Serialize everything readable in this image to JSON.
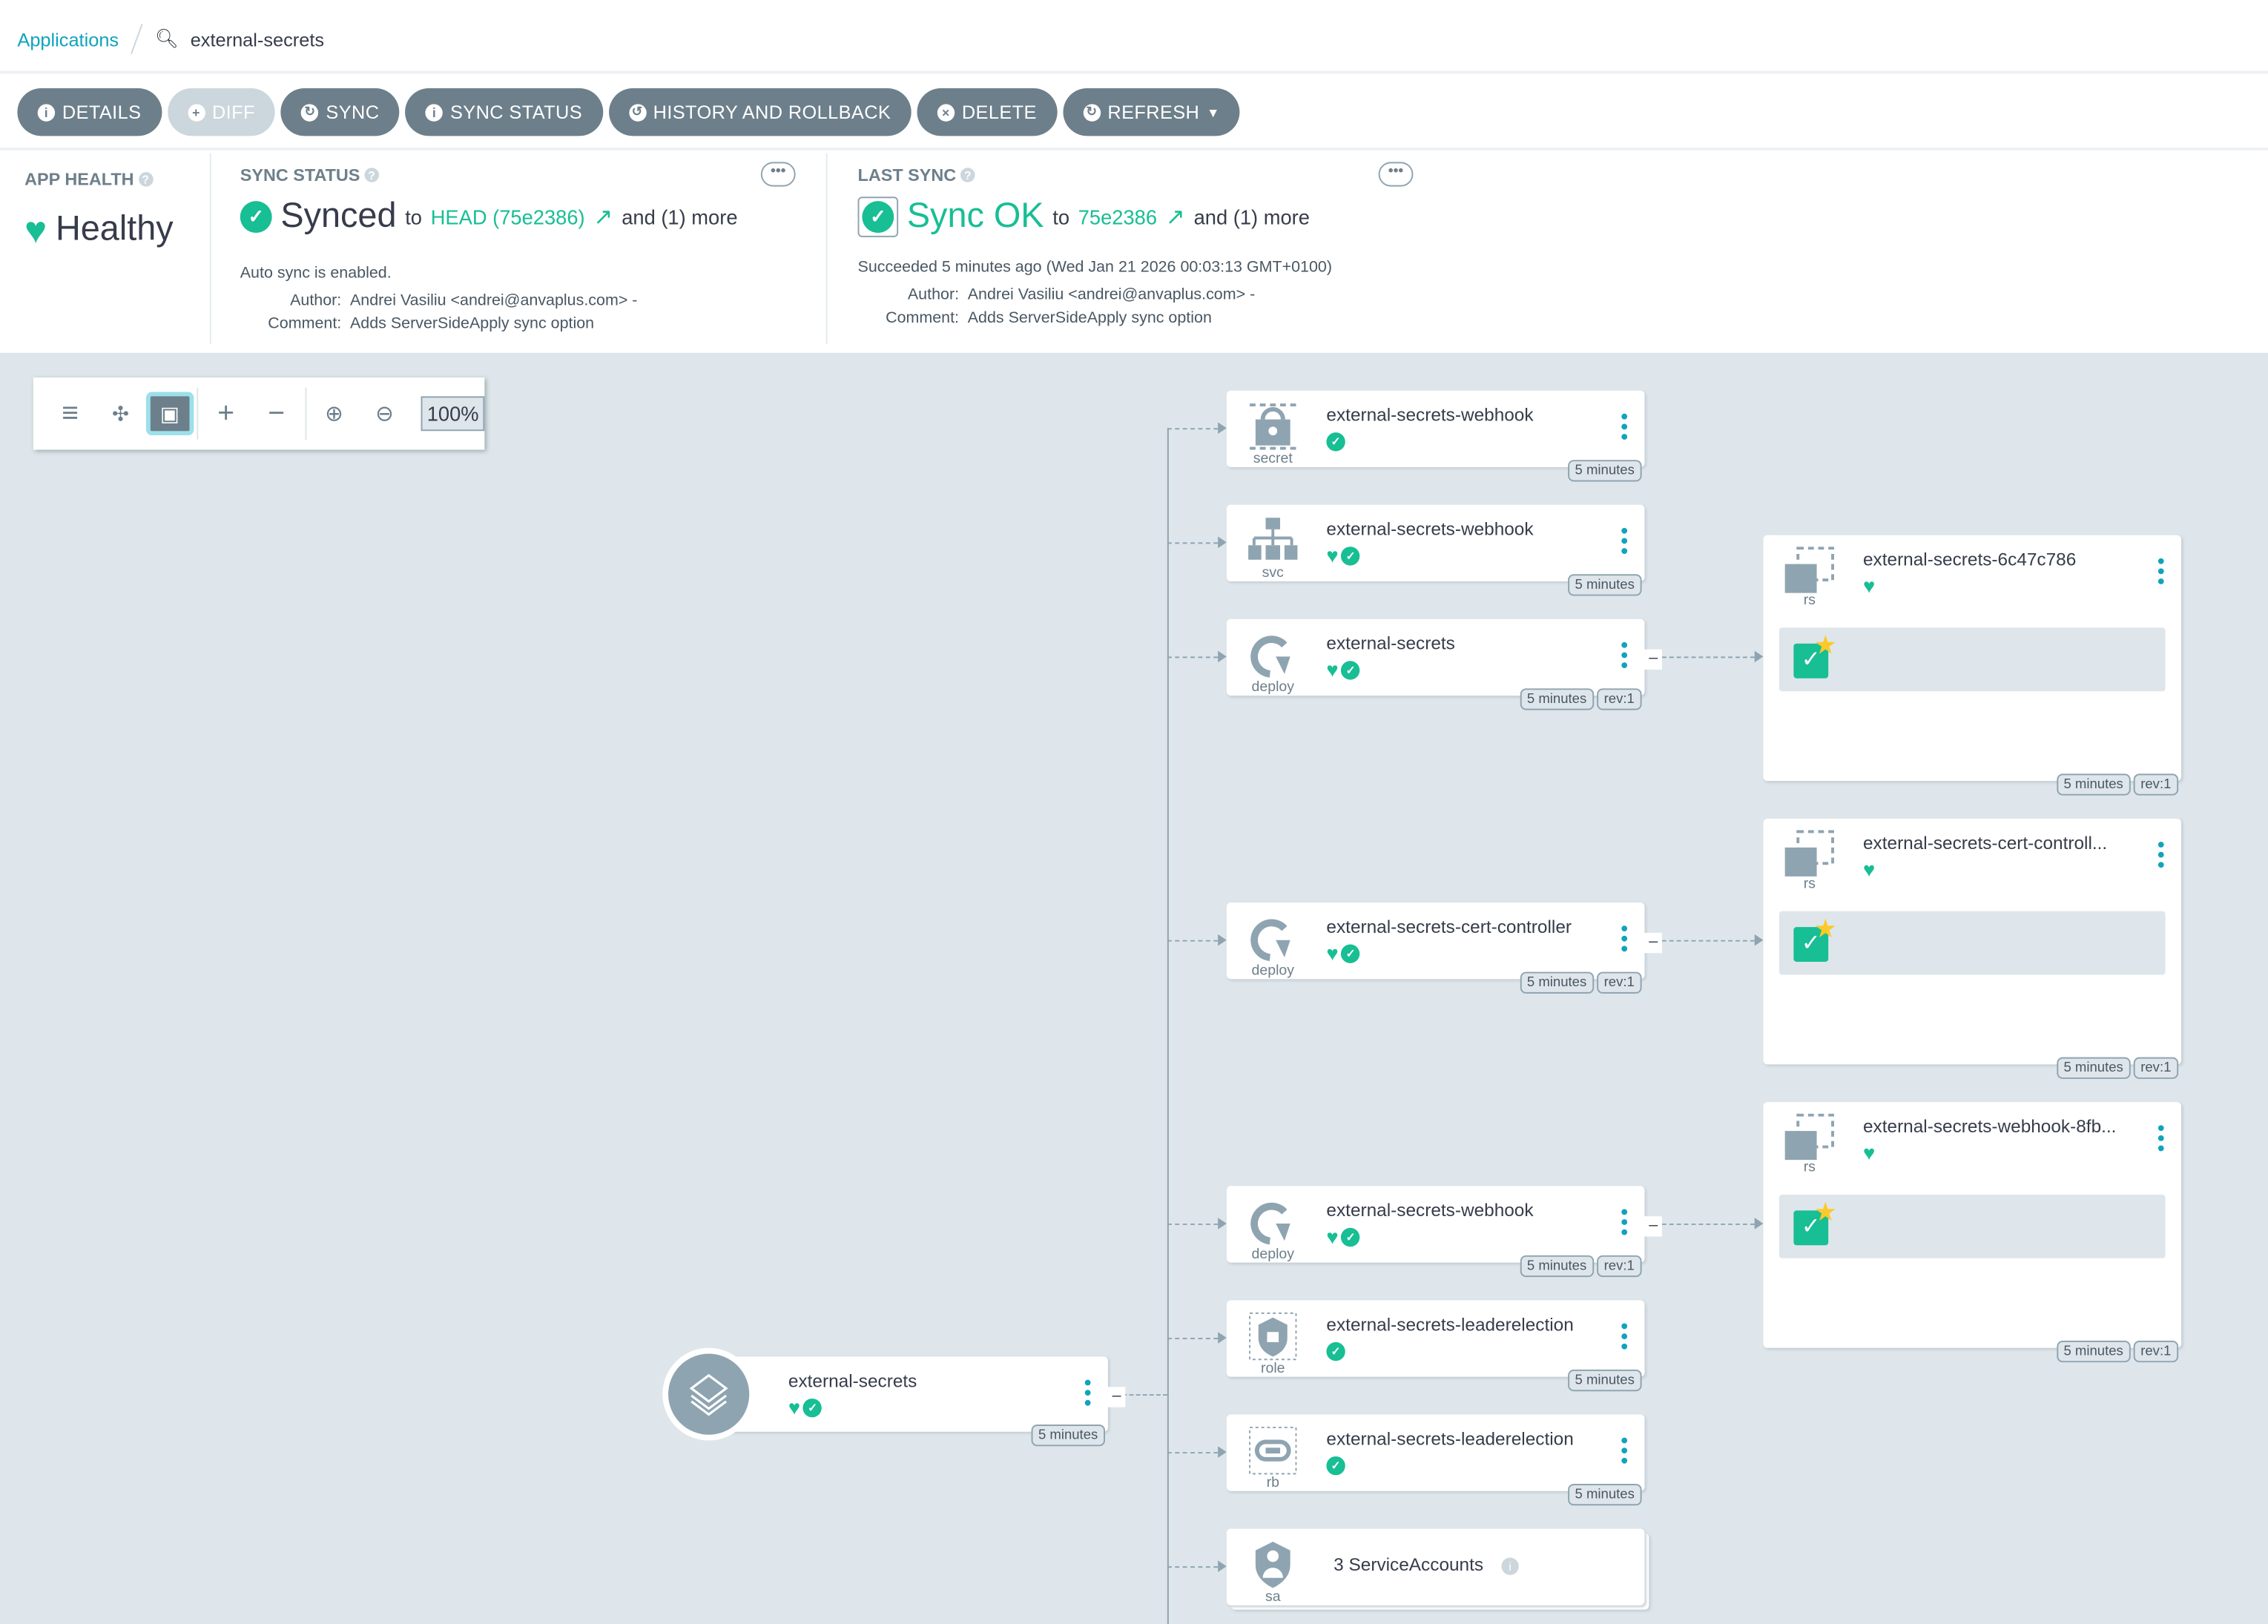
{
  "breadcrumb": {
    "root": "Applications",
    "current": "external-secrets"
  },
  "toolbar": [
    {
      "label": "DETAILS",
      "icon": "info-icon",
      "disabled": false
    },
    {
      "label": "DIFF",
      "icon": "file-diff-icon",
      "disabled": true
    },
    {
      "label": "SYNC",
      "icon": "sync-icon",
      "disabled": false
    },
    {
      "label": "SYNC STATUS",
      "icon": "info-icon",
      "disabled": false
    },
    {
      "label": "HISTORY AND ROLLBACK",
      "icon": "history-icon",
      "disabled": false
    },
    {
      "label": "DELETE",
      "icon": "close-circle-icon",
      "disabled": false
    },
    {
      "label": "REFRESH",
      "icon": "refresh-icon",
      "disabled": false,
      "dropdown": true
    }
  ],
  "app_health": {
    "label": "APP HEALTH",
    "value": "Healthy"
  },
  "sync_status": {
    "label": "SYNC STATUS",
    "value": "Synced",
    "to": "to",
    "revision": "HEAD (75e2386)",
    "more": "and (1) more",
    "auto": "Auto sync is enabled.",
    "author_label": "Author:",
    "author": "Andrei Vasiliu <andrei@anvaplus.com> -",
    "comment_label": "Comment:",
    "comment": "Adds ServerSideApply sync option"
  },
  "last_sync": {
    "label": "LAST SYNC",
    "value": "Sync OK",
    "to": "to",
    "revision": "75e2386",
    "more": "and (1) more",
    "succeeded": "Succeeded 5 minutes ago (Wed Jan 21 2026 00:03:13 GMT+0100)",
    "author_label": "Author:",
    "author": "Andrei Vasiliu <andrei@anvaplus.com> -",
    "comment_label": "Comment:",
    "comment": "Adds ServerSideApply sync option"
  },
  "graph_tools": {
    "zoom": "100%"
  },
  "colors": {
    "accent": "#10a3bd",
    "healthy": "#18be94",
    "button": "#6d7f8b",
    "canvas": "#dee6eb"
  },
  "app_node": {
    "name": "external-secrets",
    "age": "5 minutes"
  },
  "resources": [
    {
      "kind": "secret",
      "name": "external-secrets-webhook",
      "health": false,
      "synced": true,
      "age": "5 minutes"
    },
    {
      "kind": "svc",
      "name": "external-secrets-webhook",
      "health": true,
      "synced": true,
      "age": "5 minutes"
    },
    {
      "kind": "deploy",
      "name": "external-secrets",
      "health": true,
      "synced": true,
      "age": "5 minutes",
      "rev": "rev:1"
    },
    {
      "kind": "deploy",
      "name": "external-secrets-cert-controller",
      "health": true,
      "synced": true,
      "age": "5 minutes",
      "rev": "rev:1"
    },
    {
      "kind": "deploy",
      "name": "external-secrets-webhook",
      "health": true,
      "synced": true,
      "age": "5 minutes",
      "rev": "rev:1"
    },
    {
      "kind": "role",
      "name": "external-secrets-leaderelection",
      "health": false,
      "synced": true,
      "age": "5 minutes"
    },
    {
      "kind": "rb",
      "name": "external-secrets-leaderelection",
      "health": false,
      "synced": true,
      "age": "5 minutes"
    },
    {
      "kind": "sa",
      "name": "3 ServiceAccounts",
      "group": true
    }
  ],
  "replicasets": [
    {
      "kind": "rs",
      "name": "external-secrets-6c47c786",
      "age": "5 minutes",
      "rev": "rev:1"
    },
    {
      "kind": "rs",
      "name": "external-secrets-cert-controll...",
      "age": "5 minutes",
      "rev": "rev:1"
    },
    {
      "kind": "rs",
      "name": "external-secrets-webhook-8fb...",
      "age": "5 minutes",
      "rev": "rev:1"
    }
  ]
}
